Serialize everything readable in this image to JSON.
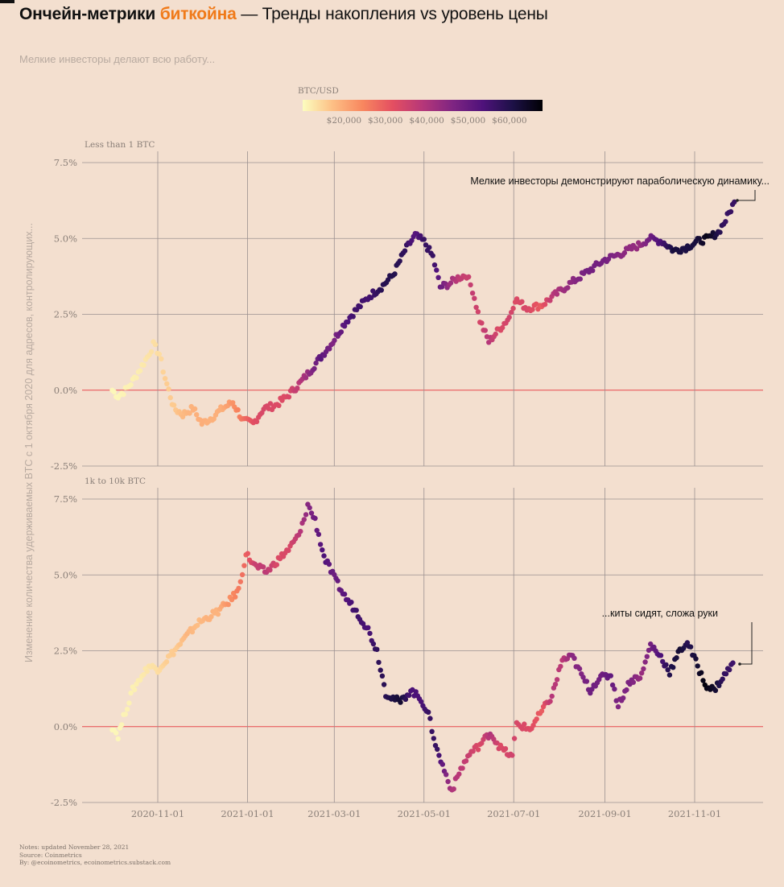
{
  "title": {
    "part1": "Ончейн-метрики",
    "accent": "биткойна",
    "part2": "— Тренды накопления vs уровень цены"
  },
  "subtitle": "Мелкие инвесторы делают всю работу...",
  "footer": {
    "notes": "Notes: updated November 28, 2021",
    "source": "Source: Coinmetrics",
    "by": "By: @ecoinometrics, ecoinometrics.substack.com"
  },
  "colors": {
    "background": "#f3dfcf",
    "accent": "#f07a19",
    "zero_line": "#e8484e",
    "grid": "#9a9090",
    "colormap": [
      "#fcfdbf",
      "#fdbf85",
      "#f8875f",
      "#e44f61",
      "#b63779",
      "#7f2582",
      "#4f127b",
      "#1d1147",
      "#000004"
    ]
  },
  "chart_data": [
    {
      "type": "scatter",
      "panel": "Less than 1 BTC",
      "ylim": [
        -2.5,
        7.5
      ],
      "yticks": [
        "7.5%",
        "5.0%",
        "2.5%",
        "0.0%",
        "-2.5%"
      ],
      "y_axis_label": "Изменение количества удерживаемых BTC с 1 октября 2020 для адресов, контролирующих...",
      "annotation": "Мелкие инвесторы демонстрируют параболическую динамику...",
      "series": [
        {
          "x": "2020-10-01",
          "y": 0.0,
          "price": 10700
        },
        {
          "x": "2020-10-05",
          "y": -0.2,
          "price": 10800
        },
        {
          "x": "2020-10-10",
          "y": 0.0,
          "price": 11300
        },
        {
          "x": "2020-10-15",
          "y": 0.3,
          "price": 11500
        },
        {
          "x": "2020-10-20",
          "y": 0.7,
          "price": 12000
        },
        {
          "x": "2020-10-25",
          "y": 1.1,
          "price": 13000
        },
        {
          "x": "2020-10-29",
          "y": 1.5,
          "price": 13500
        },
        {
          "x": "2020-11-02",
          "y": 1.2,
          "price": 13700
        },
        {
          "x": "2020-11-06",
          "y": 0.4,
          "price": 15500
        },
        {
          "x": "2020-11-12",
          "y": -0.6,
          "price": 16000
        },
        {
          "x": "2020-11-18",
          "y": -0.8,
          "price": 18000
        },
        {
          "x": "2020-11-25",
          "y": -0.6,
          "price": 19000
        },
        {
          "x": "2020-12-01",
          "y": -1.1,
          "price": 19500
        },
        {
          "x": "2020-12-08",
          "y": -0.9,
          "price": 19000
        },
        {
          "x": "2020-12-15",
          "y": -0.6,
          "price": 19500
        },
        {
          "x": "2020-12-22",
          "y": -0.4,
          "price": 23000
        },
        {
          "x": "2020-12-29",
          "y": -1.0,
          "price": 27000
        },
        {
          "x": "2021-01-05",
          "y": -1.1,
          "price": 32000
        },
        {
          "x": "2021-01-12",
          "y": -0.6,
          "price": 34000
        },
        {
          "x": "2021-01-20",
          "y": -0.5,
          "price": 33000
        },
        {
          "x": "2021-01-28",
          "y": -0.2,
          "price": 33000
        },
        {
          "x": "2021-02-05",
          "y": 0.2,
          "price": 38000
        },
        {
          "x": "2021-02-12",
          "y": 0.6,
          "price": 44000
        },
        {
          "x": "2021-02-20",
          "y": 1.1,
          "price": 52000
        },
        {
          "x": "2021-02-28",
          "y": 1.6,
          "price": 46000
        },
        {
          "x": "2021-03-08",
          "y": 2.2,
          "price": 52000
        },
        {
          "x": "2021-03-15",
          "y": 2.6,
          "price": 56000
        },
        {
          "x": "2021-03-25",
          "y": 3.1,
          "price": 55000
        },
        {
          "x": "2021-04-02",
          "y": 3.4,
          "price": 59000
        },
        {
          "x": "2021-04-10",
          "y": 3.8,
          "price": 60000
        },
        {
          "x": "2021-04-18",
          "y": 4.6,
          "price": 58000
        },
        {
          "x": "2021-04-25",
          "y": 5.1,
          "price": 52000
        },
        {
          "x": "2021-05-01",
          "y": 4.9,
          "price": 57000
        },
        {
          "x": "2021-05-07",
          "y": 4.4,
          "price": 57000
        },
        {
          "x": "2021-05-12",
          "y": 3.4,
          "price": 50000
        },
        {
          "x": "2021-05-18",
          "y": 3.5,
          "price": 43000
        },
        {
          "x": "2021-05-24",
          "y": 3.7,
          "price": 38000
        },
        {
          "x": "2021-05-30",
          "y": 3.8,
          "price": 36000
        },
        {
          "x": "2021-06-03",
          "y": 3.3,
          "price": 37000
        },
        {
          "x": "2021-06-08",
          "y": 2.3,
          "price": 34000
        },
        {
          "x": "2021-06-14",
          "y": 1.6,
          "price": 39000
        },
        {
          "x": "2021-06-21",
          "y": 2.0,
          "price": 33000
        },
        {
          "x": "2021-06-28",
          "y": 2.4,
          "price": 35000
        },
        {
          "x": "2021-07-02",
          "y": 3.0,
          "price": 33000
        },
        {
          "x": "2021-07-10",
          "y": 2.7,
          "price": 34000
        },
        {
          "x": "2021-07-20",
          "y": 2.8,
          "price": 30000
        },
        {
          "x": "2021-07-28",
          "y": 3.1,
          "price": 39000
        },
        {
          "x": "2021-08-08",
          "y": 3.5,
          "price": 44000
        },
        {
          "x": "2021-08-20",
          "y": 3.9,
          "price": 48000
        },
        {
          "x": "2021-09-01",
          "y": 4.3,
          "price": 48000
        },
        {
          "x": "2021-09-12",
          "y": 4.5,
          "price": 45000
        },
        {
          "x": "2021-09-25",
          "y": 4.8,
          "price": 43000
        },
        {
          "x": "2021-10-01",
          "y": 5.0,
          "price": 48000
        },
        {
          "x": "2021-10-10",
          "y": 4.9,
          "price": 55000
        },
        {
          "x": "2021-10-18",
          "y": 4.6,
          "price": 62000
        },
        {
          "x": "2021-10-26",
          "y": 4.7,
          "price": 61000
        },
        {
          "x": "2021-11-03",
          "y": 4.9,
          "price": 62000
        },
        {
          "x": "2021-11-10",
          "y": 5.0,
          "price": 66000
        },
        {
          "x": "2021-11-17",
          "y": 5.2,
          "price": 60000
        },
        {
          "x": "2021-11-22",
          "y": 5.6,
          "price": 57000
        },
        {
          "x": "2021-11-28",
          "y": 6.2,
          "price": 57000
        }
      ]
    },
    {
      "type": "scatter",
      "panel": "1k to 10k BTC",
      "ylim": [
        -2.5,
        7.5
      ],
      "yticks": [
        "7.5%",
        "5.0%",
        "2.5%",
        "0.0%",
        "-2.5%"
      ],
      "xticks": [
        "2020-11-01",
        "2021-01-01",
        "2021-03-01",
        "2021-05-01",
        "2021-07-01",
        "2021-09-01",
        "2021-11-01"
      ],
      "annotation": "...киты сидят, сложа руки",
      "series": [
        {
          "x": "2020-10-01",
          "y": 0.0,
          "price": 10700
        },
        {
          "x": "2020-10-05",
          "y": -0.3,
          "price": 10800
        },
        {
          "x": "2020-10-10",
          "y": 0.5,
          "price": 11300
        },
        {
          "x": "2020-10-15",
          "y": 1.2,
          "price": 11500
        },
        {
          "x": "2020-10-20",
          "y": 1.6,
          "price": 12000
        },
        {
          "x": "2020-10-26",
          "y": 2.0,
          "price": 13000
        },
        {
          "x": "2020-11-01",
          "y": 1.9,
          "price": 13700
        },
        {
          "x": "2020-11-07",
          "y": 2.2,
          "price": 15500
        },
        {
          "x": "2020-11-14",
          "y": 2.6,
          "price": 16000
        },
        {
          "x": "2020-11-21",
          "y": 3.0,
          "price": 18500
        },
        {
          "x": "2020-11-28",
          "y": 3.4,
          "price": 17500
        },
        {
          "x": "2020-12-05",
          "y": 3.6,
          "price": 19000
        },
        {
          "x": "2020-12-12",
          "y": 3.8,
          "price": 18800
        },
        {
          "x": "2020-12-19",
          "y": 4.1,
          "price": 23000
        },
        {
          "x": "2020-12-26",
          "y": 4.5,
          "price": 26000
        },
        {
          "x": "2020-12-31",
          "y": 5.7,
          "price": 29000
        },
        {
          "x": "2021-01-06",
          "y": 5.3,
          "price": 36000
        },
        {
          "x": "2021-01-14",
          "y": 5.1,
          "price": 38000
        },
        {
          "x": "2021-01-22",
          "y": 5.5,
          "price": 33000
        },
        {
          "x": "2021-01-30",
          "y": 5.9,
          "price": 34000
        },
        {
          "x": "2021-02-06",
          "y": 6.4,
          "price": 39000
        },
        {
          "x": "2021-02-11",
          "y": 7.3,
          "price": 45000
        },
        {
          "x": "2021-02-16",
          "y": 6.8,
          "price": 49000
        },
        {
          "x": "2021-02-22",
          "y": 5.6,
          "price": 54000
        },
        {
          "x": "2021-03-01",
          "y": 4.9,
          "price": 49000
        },
        {
          "x": "2021-03-08",
          "y": 4.3,
          "price": 52000
        },
        {
          "x": "2021-03-16",
          "y": 3.8,
          "price": 56000
        },
        {
          "x": "2021-03-24",
          "y": 3.2,
          "price": 54000
        },
        {
          "x": "2021-03-30",
          "y": 2.5,
          "price": 58000
        },
        {
          "x": "2021-04-05",
          "y": 1.1,
          "price": 59000
        },
        {
          "x": "2021-04-15",
          "y": 0.8,
          "price": 63000
        },
        {
          "x": "2021-04-22",
          "y": 1.2,
          "price": 54000
        },
        {
          "x": "2021-04-29",
          "y": 0.9,
          "price": 54000
        },
        {
          "x": "2021-05-04",
          "y": 0.4,
          "price": 57000
        },
        {
          "x": "2021-05-10",
          "y": -0.8,
          "price": 57000
        },
        {
          "x": "2021-05-16",
          "y": -1.6,
          "price": 46000
        },
        {
          "x": "2021-05-20",
          "y": -2.1,
          "price": 40000
        },
        {
          "x": "2021-05-26",
          "y": -1.4,
          "price": 38000
        },
        {
          "x": "2021-06-01",
          "y": -0.9,
          "price": 36000
        },
        {
          "x": "2021-06-08",
          "y": -0.6,
          "price": 33000
        },
        {
          "x": "2021-06-15",
          "y": -0.2,
          "price": 40000
        },
        {
          "x": "2021-06-22",
          "y": -0.7,
          "price": 33000
        },
        {
          "x": "2021-06-30",
          "y": -1.0,
          "price": 35000
        },
        {
          "x": "2021-07-03",
          "y": 0.1,
          "price": 34000
        },
        {
          "x": "2021-07-12",
          "y": -0.1,
          "price": 33000
        },
        {
          "x": "2021-07-20",
          "y": 0.5,
          "price": 30000
        },
        {
          "x": "2021-07-27",
          "y": 1.0,
          "price": 39000
        },
        {
          "x": "2021-08-03",
          "y": 2.2,
          "price": 38000
        },
        {
          "x": "2021-08-10",
          "y": 2.3,
          "price": 45000
        },
        {
          "x": "2021-08-16",
          "y": 1.7,
          "price": 46000
        },
        {
          "x": "2021-08-22",
          "y": 1.2,
          "price": 49000
        },
        {
          "x": "2021-08-28",
          "y": 1.6,
          "price": 48000
        },
        {
          "x": "2021-09-05",
          "y": 1.7,
          "price": 51000
        },
        {
          "x": "2021-09-10",
          "y": 0.7,
          "price": 46000
        },
        {
          "x": "2021-09-18",
          "y": 1.5,
          "price": 47000
        },
        {
          "x": "2021-09-26",
          "y": 1.7,
          "price": 43000
        },
        {
          "x": "2021-10-02",
          "y": 2.7,
          "price": 48000
        },
        {
          "x": "2021-10-09",
          "y": 2.3,
          "price": 54000
        },
        {
          "x": "2021-10-15",
          "y": 1.8,
          "price": 60000
        },
        {
          "x": "2021-10-22",
          "y": 2.5,
          "price": 63000
        },
        {
          "x": "2021-10-27",
          "y": 2.8,
          "price": 59000
        },
        {
          "x": "2021-11-03",
          "y": 2.0,
          "price": 63000
        },
        {
          "x": "2021-11-08",
          "y": 1.4,
          "price": 67000
        },
        {
          "x": "2021-11-14",
          "y": 1.2,
          "price": 64000
        },
        {
          "x": "2021-11-20",
          "y": 1.6,
          "price": 58000
        },
        {
          "x": "2021-11-27",
          "y": 2.1,
          "price": 56000
        }
      ]
    }
  ],
  "legend": {
    "title": "BTC/USD",
    "price_range": [
      10000,
      68000
    ],
    "ticks": [
      "$20,000",
      "$30,000",
      "$40,000",
      "$50,000",
      "$60,000"
    ]
  }
}
